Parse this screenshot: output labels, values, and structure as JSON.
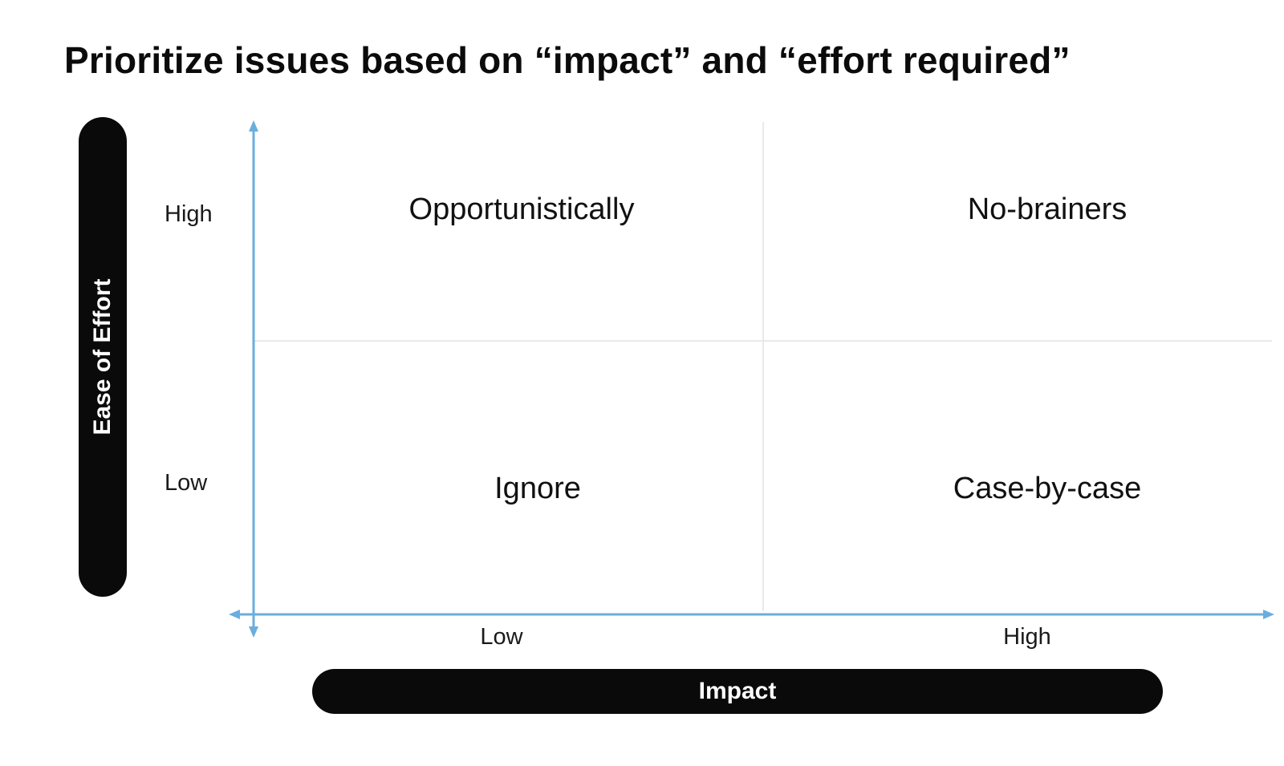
{
  "title": "Prioritize issues based on “impact” and “effort required”",
  "y_axis": {
    "label": "Ease of Effort",
    "ticks": {
      "high": "High",
      "low": "Low"
    }
  },
  "x_axis": {
    "label": "Impact",
    "ticks": {
      "low": "Low",
      "high": "High"
    }
  },
  "quadrants": {
    "top_left": "Opportunistically",
    "top_right": "No-brainers",
    "bottom_left": "Ignore",
    "bottom_right": "Case-by-case"
  },
  "colors": {
    "axis": "#6aaedc",
    "grid": "#e4e4e4",
    "pill": "#0a0a0a"
  }
}
